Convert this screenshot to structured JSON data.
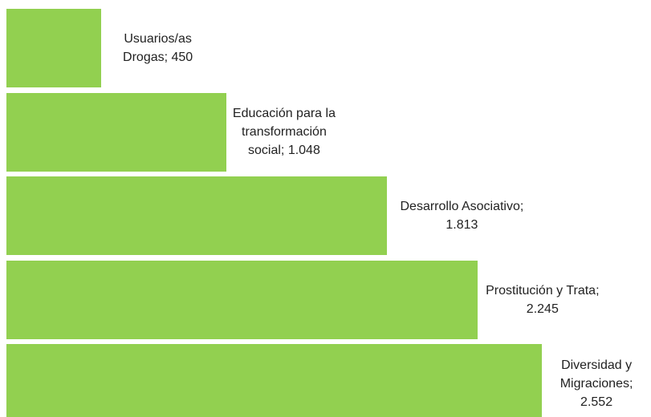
{
  "chart_data": {
    "type": "bar",
    "orientation": "horizontal",
    "color": "#92d050",
    "values": [
      450,
      1048,
      1813,
      2245,
      2552
    ],
    "value_labels": [
      "Usuarios/as Drogas; 450",
      "Educación para la transformación social; 1.048",
      "Desarrollo Asociativo; 1.813",
      "Prostitución y Trata; 2.245",
      "Diversidad y Migraciones; 2.552"
    ]
  }
}
